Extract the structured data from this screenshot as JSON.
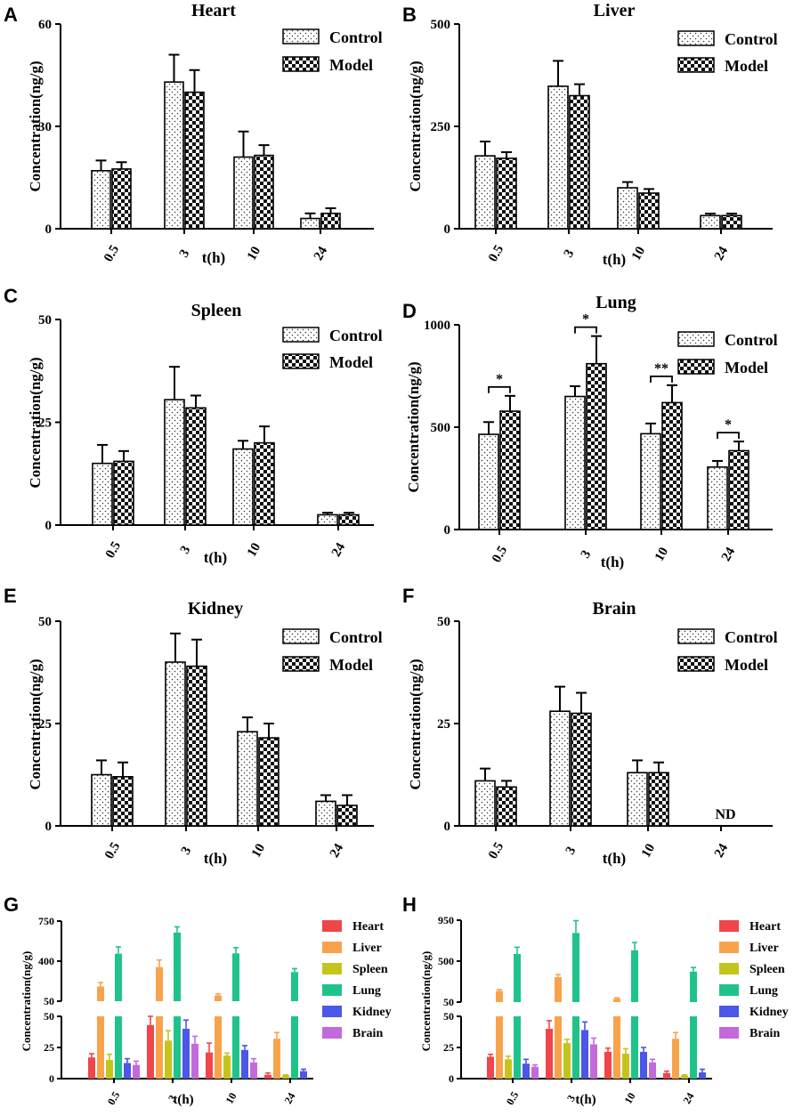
{
  "figure_title": "",
  "chart_data": [
    {
      "id": "A",
      "panel_label": "A",
      "type": "bar",
      "title": "Heart",
      "xlabel": "t(h)",
      "ylabel": "Concentration(ng/g)",
      "categories": [
        "0.5",
        "3",
        "10",
        "24"
      ],
      "ylim": [
        0,
        60
      ],
      "yticks": [
        "0",
        "30",
        "60"
      ],
      "series": [
        {
          "name": "Control",
          "values": [
            17,
            43,
            21,
            3
          ],
          "errors": [
            3,
            8,
            7.5,
            1.5
          ]
        },
        {
          "name": "Model",
          "values": [
            17.5,
            40,
            21.5,
            4.5
          ],
          "errors": [
            2,
            6.5,
            3,
            1.5
          ]
        }
      ],
      "annotations": []
    },
    {
      "id": "B",
      "panel_label": "B",
      "type": "bar",
      "title": "Liver",
      "xlabel": "t(h)",
      "ylabel": "Concentration(ng/g)",
      "categories": [
        "0.5",
        "3",
        "10",
        "24"
      ],
      "ylim": [
        0,
        500
      ],
      "yticks": [
        "0",
        "250",
        "500"
      ],
      "series": [
        {
          "name": "Control",
          "values": [
            178,
            348,
            100,
            32
          ],
          "errors": [
            35,
            62,
            14,
            5
          ]
        },
        {
          "name": "Model",
          "values": [
            172,
            325,
            87,
            32
          ],
          "errors": [
            15,
            28,
            10,
            5
          ]
        }
      ],
      "annotations": []
    },
    {
      "id": "C",
      "panel_label": "C",
      "type": "bar",
      "title": "Spleen",
      "xlabel": "t(h)",
      "ylabel": "Concentration(ng/g)",
      "categories": [
        "0.5",
        "3",
        "10",
        "24"
      ],
      "ylim": [
        0,
        50
      ],
      "yticks": [
        "0",
        "25",
        "50"
      ],
      "series": [
        {
          "name": "Control",
          "values": [
            15,
            30.5,
            18.5,
            2.5
          ],
          "errors": [
            4.5,
            8,
            2,
            0.5
          ]
        },
        {
          "name": "Model",
          "values": [
            15.5,
            28.5,
            20,
            2.5
          ],
          "errors": [
            2.5,
            3,
            4,
            0.5
          ]
        }
      ],
      "annotations": []
    },
    {
      "id": "D",
      "panel_label": "D",
      "type": "bar",
      "title": "Lung",
      "xlabel": "t(h)",
      "ylabel": "Concentration(ng/g)",
      "categories": [
        "0.5",
        "3",
        "10",
        "24"
      ],
      "ylim": [
        0,
        1000
      ],
      "yticks": [
        "0",
        "500",
        "1000"
      ],
      "series": [
        {
          "name": "Control",
          "values": [
            465,
            650,
            468,
            305
          ],
          "errors": [
            60,
            50,
            50,
            30
          ]
        },
        {
          "name": "Model",
          "values": [
            578,
            810,
            620,
            385
          ],
          "errors": [
            75,
            135,
            85,
            45
          ]
        }
      ],
      "annotations": [
        {
          "category": "0.5",
          "text": "*"
        },
        {
          "category": "3",
          "text": "*"
        },
        {
          "category": "10",
          "text": "**"
        },
        {
          "category": "24",
          "text": "*"
        }
      ]
    },
    {
      "id": "E",
      "panel_label": "E",
      "type": "bar",
      "title": "Kidney",
      "xlabel": "t(h)",
      "ylabel": "Concentration(ng/g)",
      "categories": [
        "0.5",
        "3",
        "10",
        "24"
      ],
      "ylim": [
        0,
        50
      ],
      "yticks": [
        "0",
        "25",
        "50"
      ],
      "series": [
        {
          "name": "Control",
          "values": [
            12.5,
            40,
            23,
            6
          ],
          "errors": [
            3.5,
            7,
            3.5,
            1.5
          ]
        },
        {
          "name": "Model",
          "values": [
            12,
            39,
            21.5,
            5
          ],
          "errors": [
            3.5,
            6.5,
            3.5,
            2.5
          ]
        }
      ],
      "annotations": []
    },
    {
      "id": "F",
      "panel_label": "F",
      "type": "bar",
      "title": "Brain",
      "xlabel": "t(h)",
      "ylabel": "Concentration(ng/g)",
      "categories": [
        "0.5",
        "3",
        "10",
        "24"
      ],
      "ylim": [
        0,
        50
      ],
      "yticks": [
        "0",
        "25",
        "50"
      ],
      "series": [
        {
          "name": "Control",
          "values": [
            11,
            28,
            13,
            null
          ],
          "errors": [
            3,
            6,
            3,
            null
          ]
        },
        {
          "name": "Model",
          "values": [
            9.5,
            27.5,
            13,
            null
          ],
          "errors": [
            1.5,
            5,
            2.5,
            null
          ]
        }
      ],
      "annotations": [
        {
          "category": "24",
          "text": "ND"
        }
      ]
    },
    {
      "id": "G",
      "panel_label": "G",
      "type": "bar",
      "title": "",
      "xlabel": "t(h)",
      "ylabel": "Concentration(ng/g)",
      "categories": [
        "0.5",
        "3",
        "10",
        "24"
      ],
      "broken_axis": true,
      "lower_ylim": [
        0,
        50
      ],
      "lower_yticks": [
        "0",
        "25",
        "50"
      ],
      "upper_ylim": [
        50,
        750
      ],
      "upper_yticks": [
        "50",
        "400",
        "750"
      ],
      "series": [
        {
          "name": "Heart",
          "color": "#f0454a",
          "values": [
            17,
            43,
            21,
            3
          ],
          "errors": [
            3,
            8,
            7.5,
            1.5
          ]
        },
        {
          "name": "Liver",
          "color": "#f8a34c",
          "values": [
            178,
            348,
            100,
            32
          ],
          "errors": [
            35,
            62,
            14,
            5
          ]
        },
        {
          "name": "Spleen",
          "color": "#c4c41d",
          "values": [
            15,
            30.5,
            18.5,
            2.5
          ],
          "errors": [
            4.5,
            8,
            2,
            0.5
          ]
        },
        {
          "name": "Lung",
          "color": "#1fc38a",
          "values": [
            465,
            650,
            468,
            305
          ],
          "errors": [
            60,
            50,
            50,
            30
          ]
        },
        {
          "name": "Kidney",
          "color": "#4b57e6",
          "values": [
            12.5,
            40,
            23,
            6
          ],
          "errors": [
            3.5,
            7,
            3.5,
            1.5
          ]
        },
        {
          "name": "Brain",
          "color": "#c26adb",
          "values": [
            11,
            28,
            13,
            null
          ],
          "errors": [
            3,
            6,
            3,
            null
          ]
        }
      ]
    },
    {
      "id": "H",
      "panel_label": "H",
      "type": "bar",
      "title": "",
      "xlabel": "t(h)",
      "ylabel": "Concentration(ng/g)",
      "categories": [
        "0.5",
        "3",
        "10",
        "24"
      ],
      "broken_axis": true,
      "lower_ylim": [
        0,
        50
      ],
      "lower_yticks": [
        "0",
        "25",
        "50"
      ],
      "upper_ylim": [
        50,
        950
      ],
      "upper_yticks": [
        "50",
        "500",
        "950"
      ],
      "series": [
        {
          "name": "Heart",
          "color": "#f0454a",
          "values": [
            17.5,
            40,
            21.5,
            4.5
          ],
          "errors": [
            2,
            6.5,
            3,
            1.5
          ]
        },
        {
          "name": "Liver",
          "color": "#f8a34c",
          "values": [
            172,
            325,
            87,
            32
          ],
          "errors": [
            15,
            28,
            10,
            5
          ]
        },
        {
          "name": "Spleen",
          "color": "#c4c41d",
          "values": [
            15.5,
            28.5,
            20,
            2.5
          ],
          "errors": [
            2.5,
            3,
            4,
            0.5
          ]
        },
        {
          "name": "Lung",
          "color": "#1fc38a",
          "values": [
            578,
            810,
            620,
            385
          ],
          "errors": [
            75,
            135,
            85,
            45
          ]
        },
        {
          "name": "Kidney",
          "color": "#4b57e6",
          "values": [
            12,
            39,
            21.5,
            5
          ],
          "errors": [
            3.5,
            6.5,
            3.5,
            2.5
          ]
        },
        {
          "name": "Brain",
          "color": "#c26adb",
          "values": [
            9.5,
            27.5,
            13,
            null
          ],
          "errors": [
            1.5,
            5,
            2.5,
            null
          ]
        }
      ]
    }
  ]
}
